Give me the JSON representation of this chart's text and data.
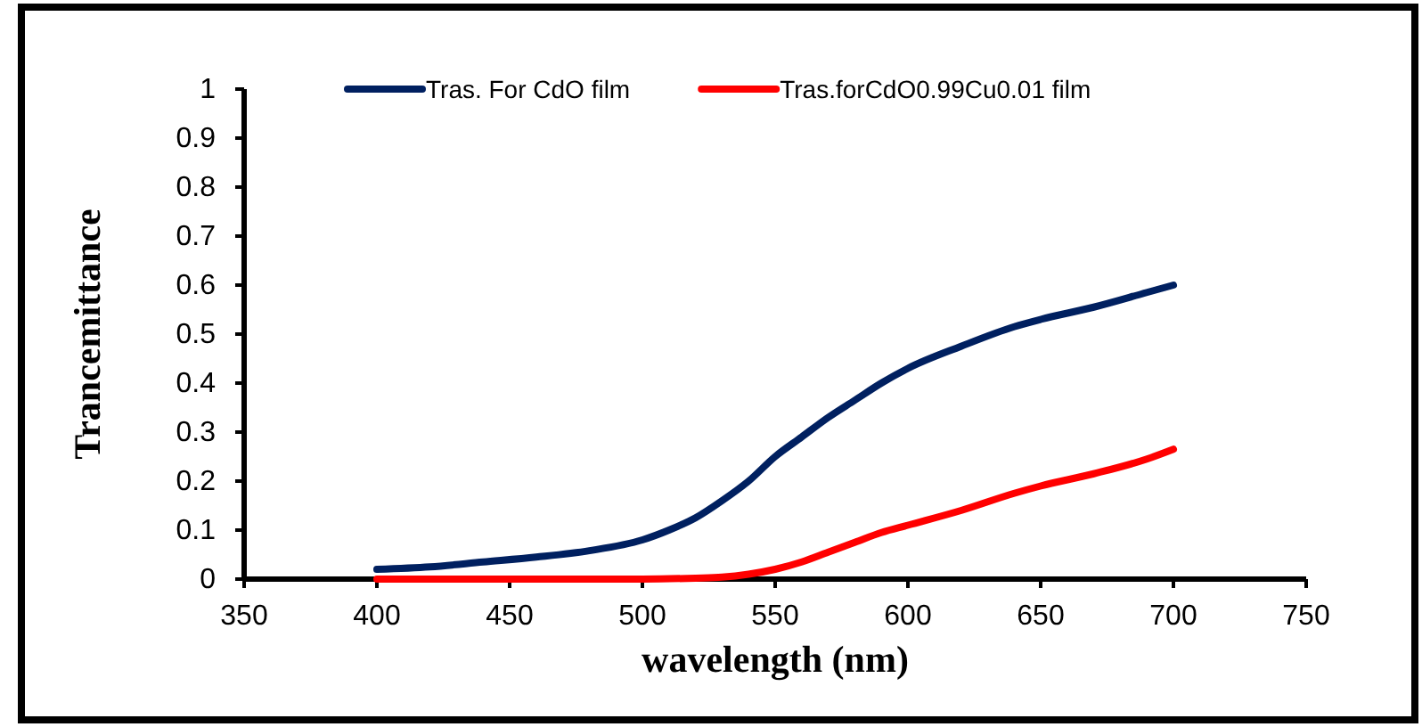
{
  "chart_data": {
    "type": "line",
    "xlabel": "wavelength (nm)",
    "ylabel": "Trancemittance",
    "xlim": [
      350,
      750
    ],
    "xticks": [
      350,
      400,
      450,
      500,
      550,
      600,
      650,
      700,
      750
    ],
    "ylim": [
      0,
      1
    ],
    "yticks": [
      0,
      0.1,
      0.2,
      0.3,
      0.4,
      0.5,
      0.6,
      0.7,
      0.8,
      0.9,
      1
    ],
    "grid": false,
    "legend": "top",
    "marker": "none",
    "line_style": "solid",
    "series": [
      {
        "name": "Tras. For CdO film",
        "color": "#002060",
        "x": [
          400,
          420,
          440,
          460,
          480,
          500,
          510,
          520,
          530,
          540,
          550,
          560,
          570,
          580,
          590,
          600,
          620,
          640,
          650,
          670,
          690,
          700
        ],
        "values": [
          0.02,
          0.025,
          0.035,
          0.045,
          0.058,
          0.08,
          0.1,
          0.125,
          0.16,
          0.2,
          0.25,
          0.29,
          0.33,
          0.365,
          0.4,
          0.43,
          0.475,
          0.515,
          0.53,
          0.555,
          0.585,
          0.6
        ]
      },
      {
        "name": "Tras.forCdO0.99Cu0.01  film",
        "color": "#ff0000",
        "x": [
          400,
          500,
          520,
          530,
          540,
          550,
          560,
          570,
          580,
          590,
          600,
          620,
          640,
          650,
          670,
          690,
          700
        ],
        "values": [
          0,
          0,
          0.002,
          0.004,
          0.01,
          0.02,
          0.035,
          0.055,
          0.075,
          0.095,
          0.11,
          0.14,
          0.175,
          0.19,
          0.215,
          0.245,
          0.265
        ]
      }
    ]
  }
}
